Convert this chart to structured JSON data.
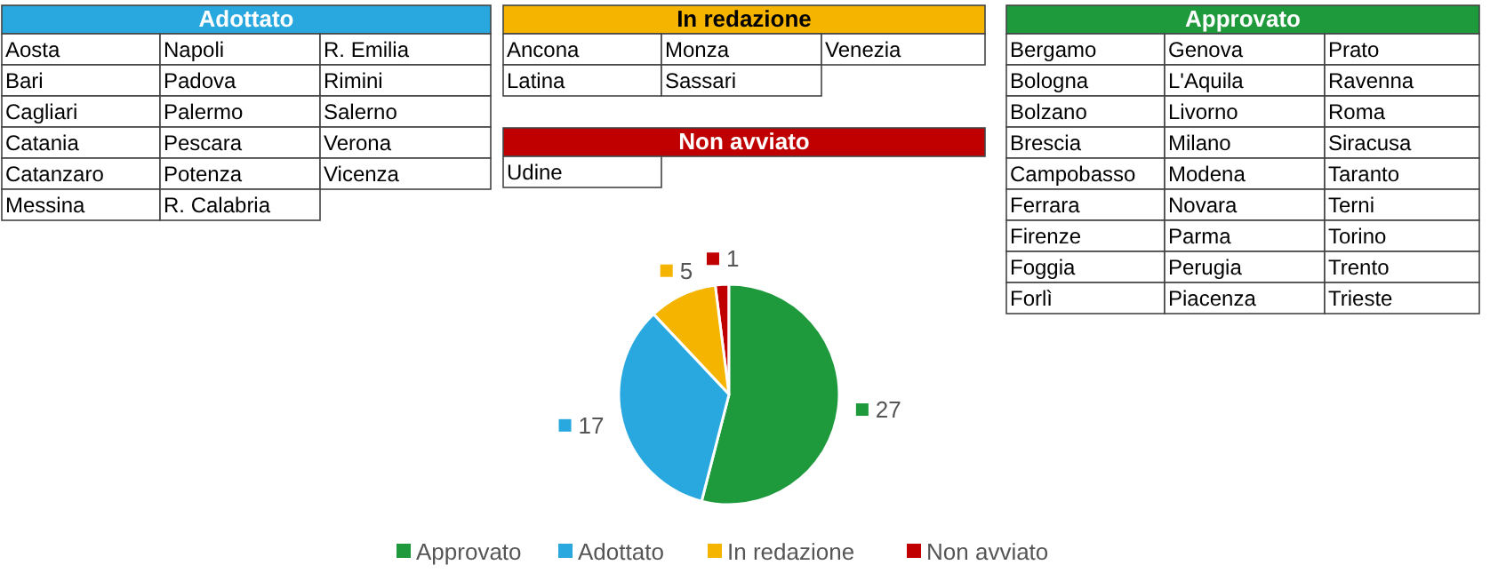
{
  "chart_data": [
    {
      "type": "other",
      "title": "Adottato",
      "color": "#29a8e0",
      "annotations": [
        "Aosta",
        "Napoli",
        "R. Emilia",
        "Bari",
        "Padova",
        "Rimini",
        "Cagliari",
        "Palermo",
        "Salerno",
        "Catania",
        "Pescara",
        "Verona",
        "Catanzaro",
        "Potenza",
        "Vicenza",
        "Messina",
        "R. Calabria"
      ]
    },
    {
      "type": "other",
      "title": "In redazione",
      "color": "#f5b400",
      "annotations": [
        "Ancona",
        "Monza",
        "Venezia",
        "Latina",
        "Sassari"
      ]
    },
    {
      "type": "other",
      "title": "Non avviato",
      "color": "#c00000",
      "annotations": [
        "Udine"
      ]
    },
    {
      "type": "other",
      "title": "Approvato",
      "color": "#1e9a3c",
      "annotations": [
        "Bergamo",
        "Genova",
        "Prato",
        "Bologna",
        "L'Aquila",
        "Ravenna",
        "Bolzano",
        "Livorno",
        "Roma",
        "Brescia",
        "Milano",
        "Siracusa",
        "Campobasso",
        "Modena",
        "Taranto",
        "Ferrara",
        "Novara",
        "Terni",
        "Firenze",
        "Parma",
        "Torino",
        "Foggia",
        "Perugia",
        "Trento",
        "Forlì",
        "Piacenza",
        "Trieste"
      ]
    },
    {
      "type": "pie",
      "categories": [
        "Approvato",
        "Adottato",
        "In redazione",
        "Non avviato"
      ],
      "values": [
        27,
        17,
        5,
        1
      ],
      "colors": [
        "#1e9a3c",
        "#29a8e0",
        "#f5b400",
        "#c00000"
      ],
      "data_labels": true,
      "legend": "bottom"
    }
  ]
}
